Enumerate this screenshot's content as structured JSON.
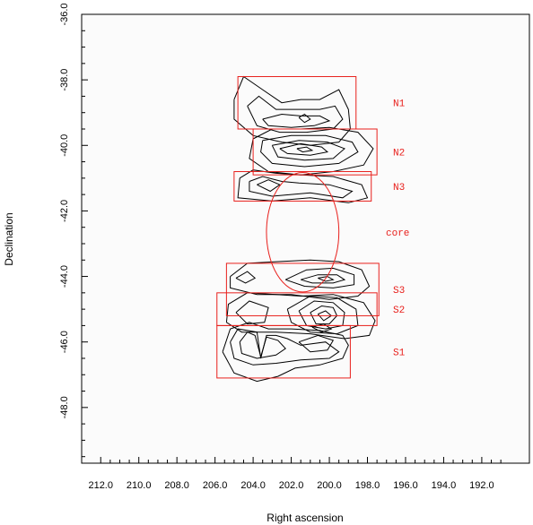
{
  "chart_data": {
    "type": "contour",
    "xlabel": "Right ascension",
    "ylabel": "Declination",
    "xlim": [
      213.0,
      189.5
    ],
    "ylim": [
      -49.7,
      -36.0
    ],
    "x_reversed": true,
    "x_ticks": [
      212.0,
      210.0,
      208.0,
      206.0,
      204.0,
      202.0,
      200.0,
      198.0,
      196.0,
      194.0,
      192.0
    ],
    "x_tick_labels": [
      "212.0",
      "210.0",
      "208.0",
      "206.0",
      "204.0",
      "202.0",
      "200.0",
      "198.0",
      "196.0",
      "194.0",
      "192.0"
    ],
    "y_ticks": [
      -36.0,
      -38.0,
      -40.0,
      -42.0,
      -44.0,
      -46.0,
      -48.0
    ],
    "y_tick_labels": [
      "-36.0",
      "-38.0",
      "-40.0",
      "-42.0",
      "-44.0",
      "-46.0",
      "-48.0"
    ],
    "grid": false,
    "line_color": "#000000",
    "region_color": "#e8201c",
    "regions": [
      {
        "name": "N1",
        "shape": "rect",
        "ra": [
          204.8,
          198.6
        ],
        "dec": [
          -37.9,
          -39.5
        ]
      },
      {
        "name": "N2",
        "shape": "rect",
        "ra": [
          204.0,
          197.5
        ],
        "dec": [
          -39.5,
          -40.9
        ]
      },
      {
        "name": "N3",
        "shape": "rect",
        "ra": [
          205.0,
          197.8
        ],
        "dec": [
          -40.8,
          -41.7
        ]
      },
      {
        "name": "core",
        "shape": "circle",
        "center": [
          201.4,
          -42.65
        ],
        "radius": 1.9
      },
      {
        "name": "S3",
        "shape": "rect",
        "ra": [
          205.4,
          197.4
        ],
        "dec": [
          -43.6,
          -45.2
        ]
      },
      {
        "name": "S2",
        "shape": "rect",
        "ra": [
          205.9,
          197.5
        ],
        "dec": [
          -44.5,
          -45.5
        ]
      },
      {
        "name": "S1",
        "shape": "rect",
        "ra": [
          205.9,
          198.9
        ],
        "dec": [
          -45.5,
          -47.1
        ]
      }
    ],
    "contours": [
      [
        [
          205.0,
          -38.6
        ],
        [
          204.5,
          -37.9
        ],
        [
          203.5,
          -38.3
        ],
        [
          202.5,
          -38.7
        ],
        [
          201.5,
          -38.6
        ],
        [
          200.5,
          -38.6
        ],
        [
          199.5,
          -38.3
        ],
        [
          199.0,
          -38.9
        ],
        [
          198.9,
          -39.5
        ],
        [
          199.5,
          -39.9
        ],
        [
          201.0,
          -40.0
        ],
        [
          202.5,
          -39.9
        ],
        [
          204.0,
          -39.7
        ],
        [
          205.0,
          -39.2
        ],
        [
          205.0,
          -38.6
        ]
      ],
      [
        [
          204.3,
          -38.8
        ],
        [
          203.7,
          -38.5
        ],
        [
          202.8,
          -38.9
        ],
        [
          201.8,
          -38.9
        ],
        [
          200.5,
          -38.9
        ],
        [
          199.7,
          -38.8
        ],
        [
          199.3,
          -39.2
        ],
        [
          199.8,
          -39.5
        ],
        [
          201.2,
          -39.6
        ],
        [
          202.6,
          -39.6
        ],
        [
          203.8,
          -39.4
        ],
        [
          204.3,
          -38.8
        ]
      ],
      [
        [
          203.5,
          -39.2
        ],
        [
          202.5,
          -39.05
        ],
        [
          201.5,
          -39.1
        ],
        [
          200.5,
          -39.1
        ],
        [
          200.0,
          -39.25
        ],
        [
          200.8,
          -39.4
        ],
        [
          202.0,
          -39.45
        ],
        [
          203.2,
          -39.4
        ],
        [
          203.5,
          -39.2
        ]
      ],
      [
        [
          201.6,
          -39.15
        ],
        [
          201.3,
          -39.05
        ],
        [
          201.0,
          -39.2
        ],
        [
          201.3,
          -39.3
        ],
        [
          201.6,
          -39.15
        ]
      ],
      [
        [
          204.0,
          -39.8
        ],
        [
          203.0,
          -39.5
        ],
        [
          201.5,
          -39.5
        ],
        [
          200.0,
          -39.45
        ],
        [
          198.5,
          -39.6
        ],
        [
          197.7,
          -40.1
        ],
        [
          198.2,
          -40.6
        ],
        [
          199.8,
          -40.8
        ],
        [
          201.5,
          -40.9
        ],
        [
          203.2,
          -40.8
        ],
        [
          204.2,
          -40.4
        ],
        [
          204.0,
          -39.8
        ]
      ],
      [
        [
          203.5,
          -39.85
        ],
        [
          202.0,
          -39.7
        ],
        [
          200.2,
          -39.7
        ],
        [
          198.8,
          -39.9
        ],
        [
          198.5,
          -40.2
        ],
        [
          199.5,
          -40.55
        ],
        [
          201.3,
          -40.65
        ],
        [
          203.0,
          -40.55
        ],
        [
          203.6,
          -40.2
        ],
        [
          203.5,
          -39.85
        ]
      ],
      [
        [
          203.0,
          -40.0
        ],
        [
          201.6,
          -39.85
        ],
        [
          200.1,
          -39.9
        ],
        [
          199.2,
          -40.1
        ],
        [
          199.8,
          -40.4
        ],
        [
          201.3,
          -40.45
        ],
        [
          202.7,
          -40.35
        ],
        [
          203.0,
          -40.0
        ]
      ],
      [
        [
          202.6,
          -40.1
        ],
        [
          201.5,
          -39.95
        ],
        [
          200.4,
          -40.05
        ],
        [
          200.1,
          -40.2
        ],
        [
          201.0,
          -40.3
        ],
        [
          202.2,
          -40.25
        ],
        [
          202.6,
          -40.1
        ]
      ],
      [
        [
          201.7,
          -40.1
        ],
        [
          201.2,
          -40.05
        ],
        [
          200.9,
          -40.15
        ],
        [
          201.4,
          -40.2
        ],
        [
          201.7,
          -40.1
        ]
      ],
      [
        [
          204.7,
          -41.0
        ],
        [
          204.0,
          -40.75
        ],
        [
          202.8,
          -40.85
        ],
        [
          201.5,
          -40.9
        ],
        [
          199.8,
          -40.95
        ],
        [
          198.3,
          -41.2
        ],
        [
          198.0,
          -41.6
        ],
        [
          199.0,
          -41.75
        ],
        [
          201.0,
          -41.6
        ],
        [
          203.0,
          -41.7
        ],
        [
          204.8,
          -41.6
        ],
        [
          204.7,
          -41.0
        ]
      ],
      [
        [
          204.2,
          -41.1
        ],
        [
          203.5,
          -40.95
        ],
        [
          202.5,
          -41.1
        ],
        [
          201.6,
          -41.15
        ],
        [
          200.0,
          -41.2
        ],
        [
          198.8,
          -41.4
        ],
        [
          199.3,
          -41.6
        ],
        [
          201.0,
          -41.45
        ],
        [
          203.0,
          -41.55
        ],
        [
          204.2,
          -41.4
        ],
        [
          204.2,
          -41.1
        ]
      ],
      [
        [
          203.8,
          -41.2
        ],
        [
          203.2,
          -41.05
        ],
        [
          202.6,
          -41.2
        ],
        [
          203.1,
          -41.4
        ],
        [
          203.8,
          -41.2
        ]
      ],
      [
        [
          205.2,
          -44.0
        ],
        [
          204.3,
          -43.6
        ],
        [
          202.8,
          -43.55
        ],
        [
          201.0,
          -43.5
        ],
        [
          199.5,
          -43.55
        ],
        [
          198.3,
          -43.8
        ],
        [
          197.9,
          -44.3
        ],
        [
          198.5,
          -44.6
        ],
        [
          200.0,
          -44.7
        ],
        [
          202.0,
          -44.55
        ],
        [
          203.8,
          -44.55
        ],
        [
          205.2,
          -44.35
        ],
        [
          205.2,
          -44.0
        ]
      ],
      [
        [
          204.9,
          -44.05
        ],
        [
          204.3,
          -43.85
        ],
        [
          203.9,
          -44.05
        ],
        [
          204.4,
          -44.2
        ],
        [
          204.9,
          -44.05
        ]
      ],
      [
        [
          202.3,
          -44.1
        ],
        [
          201.2,
          -43.8
        ],
        [
          199.8,
          -43.75
        ],
        [
          198.7,
          -43.95
        ],
        [
          198.7,
          -44.25
        ],
        [
          199.8,
          -44.35
        ],
        [
          201.3,
          -44.3
        ],
        [
          202.3,
          -44.1
        ]
      ],
      [
        [
          201.5,
          -44.1
        ],
        [
          200.6,
          -43.95
        ],
        [
          199.6,
          -43.95
        ],
        [
          199.2,
          -44.1
        ],
        [
          199.8,
          -44.2
        ],
        [
          200.9,
          -44.2
        ],
        [
          201.5,
          -44.1
        ]
      ],
      [
        [
          200.6,
          -44.05
        ],
        [
          200.1,
          -44.0
        ],
        [
          199.8,
          -44.1
        ],
        [
          200.2,
          -44.15
        ],
        [
          200.6,
          -44.05
        ]
      ],
      [
        [
          205.4,
          -45.4
        ],
        [
          205.3,
          -44.85
        ],
        [
          204.3,
          -44.5
        ],
        [
          202.8,
          -44.55
        ],
        [
          201.5,
          -44.6
        ],
        [
          199.8,
          -44.55
        ],
        [
          198.2,
          -44.8
        ],
        [
          197.6,
          -45.35
        ],
        [
          197.9,
          -45.8
        ],
        [
          199.2,
          -45.9
        ],
        [
          201.0,
          -45.75
        ],
        [
          202.8,
          -45.7
        ],
        [
          204.6,
          -45.7
        ],
        [
          205.4,
          -45.4
        ]
      ],
      [
        [
          204.9,
          -45.1
        ],
        [
          204.2,
          -44.75
        ],
        [
          203.2,
          -44.95
        ],
        [
          203.4,
          -45.4
        ],
        [
          204.3,
          -45.45
        ],
        [
          204.9,
          -45.1
        ]
      ],
      [
        [
          202.2,
          -45.0
        ],
        [
          201.0,
          -44.6
        ],
        [
          199.6,
          -44.65
        ],
        [
          198.6,
          -45.0
        ],
        [
          198.5,
          -45.5
        ],
        [
          199.6,
          -45.75
        ],
        [
          201.0,
          -45.7
        ],
        [
          202.0,
          -45.4
        ],
        [
          202.2,
          -45.0
        ]
      ],
      [
        [
          201.6,
          -45.05
        ],
        [
          200.8,
          -44.75
        ],
        [
          199.8,
          -44.8
        ],
        [
          199.2,
          -45.1
        ],
        [
          199.3,
          -45.5
        ],
        [
          200.2,
          -45.6
        ],
        [
          201.2,
          -45.5
        ],
        [
          201.6,
          -45.05
        ]
      ],
      [
        [
          201.0,
          -45.1
        ],
        [
          200.4,
          -44.9
        ],
        [
          199.8,
          -44.95
        ],
        [
          199.6,
          -45.2
        ],
        [
          200.0,
          -45.45
        ],
        [
          200.7,
          -45.45
        ],
        [
          201.0,
          -45.1
        ]
      ],
      [
        [
          200.6,
          -45.15
        ],
        [
          200.2,
          -45.05
        ],
        [
          199.9,
          -45.2
        ],
        [
          200.3,
          -45.35
        ],
        [
          200.6,
          -45.15
        ]
      ],
      [
        [
          205.6,
          -46.3
        ],
        [
          205.2,
          -45.6
        ],
        [
          204.2,
          -45.4
        ],
        [
          203.2,
          -45.6
        ],
        [
          202.0,
          -45.6
        ],
        [
          200.5,
          -45.65
        ],
        [
          199.3,
          -45.8
        ],
        [
          199.0,
          -46.1
        ],
        [
          199.3,
          -46.5
        ],
        [
          200.5,
          -46.7
        ],
        [
          201.8,
          -46.8
        ],
        [
          202.7,
          -47.05
        ],
        [
          203.8,
          -47.2
        ],
        [
          205.0,
          -46.95
        ],
        [
          205.6,
          -46.3
        ]
      ],
      [
        [
          205.2,
          -46.0
        ],
        [
          204.8,
          -45.6
        ],
        [
          203.8,
          -45.7
        ],
        [
          203.6,
          -46.5
        ],
        [
          203.3,
          -45.8
        ],
        [
          202.8,
          -45.8
        ],
        [
          202.2,
          -45.9
        ],
        [
          201.5,
          -46.1
        ],
        [
          200.2,
          -46.0
        ],
        [
          199.5,
          -46.3
        ],
        [
          200.0,
          -46.5
        ],
        [
          201.5,
          -46.55
        ],
        [
          202.8,
          -46.65
        ],
        [
          204.0,
          -46.7
        ],
        [
          205.0,
          -46.5
        ],
        [
          205.2,
          -46.0
        ]
      ],
      [
        [
          204.7,
          -46.0
        ],
        [
          204.3,
          -45.7
        ],
        [
          203.9,
          -45.8
        ],
        [
          203.6,
          -46.45
        ],
        [
          203.3,
          -45.85
        ],
        [
          202.7,
          -45.95
        ],
        [
          202.3,
          -46.2
        ],
        [
          202.8,
          -46.4
        ],
        [
          203.8,
          -46.5
        ],
        [
          204.6,
          -46.35
        ],
        [
          204.7,
          -46.0
        ]
      ],
      [
        [
          201.6,
          -46.0
        ],
        [
          200.6,
          -45.8
        ],
        [
          199.8,
          -45.95
        ],
        [
          200.1,
          -46.25
        ],
        [
          201.0,
          -46.3
        ],
        [
          201.6,
          -46.0
        ]
      ],
      [
        [
          200.9,
          -45.55
        ],
        [
          200.3,
          -45.45
        ],
        [
          199.9,
          -45.6
        ],
        [
          200.4,
          -45.7
        ],
        [
          200.9,
          -45.55
        ]
      ]
    ]
  }
}
